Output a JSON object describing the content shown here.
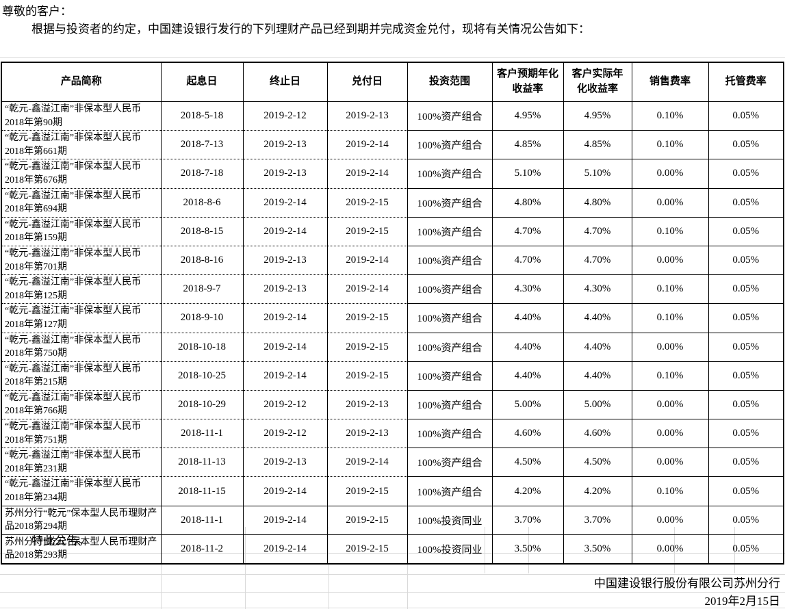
{
  "document": {
    "salutation": "尊敬的客户：",
    "intro": "根据与投资者的约定，中国建设银行发行的下列理财产品已经到期并完成资金兑付，现将有关情况公告如下：",
    "closing": "特此公告。",
    "issuer": "中国建设银行股份有限公司苏州分行",
    "date": "2019年2月15日"
  },
  "table": {
    "columns": [
      "产品简称",
      "起息日",
      "终止日",
      "兑付日",
      "投资范围",
      "客户预期年化收益率",
      "客户实际年化收益率",
      "销售费率",
      "托管费率"
    ],
    "rows": [
      [
        "“乾元-鑫溢江南”非保本型人民币2018年第90期",
        "2018-5-18",
        "2019-2-12",
        "2019-2-13",
        "100%资产组合",
        "4.95%",
        "4.95%",
        "0.10%",
        "0.05%"
      ],
      [
        "“乾元-鑫溢江南”非保本型人民币2018年第661期",
        "2018-7-13",
        "2019-2-13",
        "2019-2-14",
        "100%资产组合",
        "4.85%",
        "4.85%",
        "0.10%",
        "0.05%"
      ],
      [
        "“乾元-鑫溢江南”非保本型人民币2018年第676期",
        "2018-7-18",
        "2019-2-13",
        "2019-2-14",
        "100%资产组合",
        "5.10%",
        "5.10%",
        "0.00%",
        "0.05%"
      ],
      [
        "“乾元-鑫溢江南”非保本型人民币2018年第694期",
        "2018-8-6",
        "2019-2-14",
        "2019-2-15",
        "100%资产组合",
        "4.80%",
        "4.80%",
        "0.00%",
        "0.05%"
      ],
      [
        "“乾元-鑫溢江南”非保本型人民币2018年第159期",
        "2018-8-15",
        "2019-2-14",
        "2019-2-15",
        "100%资产组合",
        "4.70%",
        "4.70%",
        "0.10%",
        "0.05%"
      ],
      [
        "“乾元-鑫溢江南”非保本型人民币2018年第701期",
        "2018-8-16",
        "2019-2-13",
        "2019-2-14",
        "100%资产组合",
        "4.70%",
        "4.70%",
        "0.00%",
        "0.05%"
      ],
      [
        "“乾元-鑫溢江南”非保本型人民币2018年第125期",
        "2018-9-7",
        "2019-2-13",
        "2019-2-14",
        "100%资产组合",
        "4.30%",
        "4.30%",
        "0.10%",
        "0.05%"
      ],
      [
        "“乾元-鑫溢江南”非保本型人民币2018年第127期",
        "2018-9-10",
        "2019-2-14",
        "2019-2-15",
        "100%资产组合",
        "4.40%",
        "4.40%",
        "0.10%",
        "0.05%"
      ],
      [
        "“乾元-鑫溢江南”非保本型人民币2018年第750期",
        "2018-10-18",
        "2019-2-14",
        "2019-2-15",
        "100%资产组合",
        "4.40%",
        "4.40%",
        "0.00%",
        "0.05%"
      ],
      [
        "“乾元-鑫溢江南”非保本型人民币2018年第215期",
        "2018-10-25",
        "2019-2-14",
        "2019-2-15",
        "100%资产组合",
        "4.40%",
        "4.40%",
        "0.10%",
        "0.05%"
      ],
      [
        "“乾元-鑫溢江南”非保本型人民币2018年第766期",
        "2018-10-29",
        "2019-2-12",
        "2019-2-13",
        "100%资产组合",
        "5.00%",
        "5.00%",
        "0.00%",
        "0.05%"
      ],
      [
        "“乾元-鑫溢江南”非保本型人民币2018年第751期",
        "2018-11-1",
        "2019-2-12",
        "2019-2-13",
        "100%资产组合",
        "4.60%",
        "4.60%",
        "0.00%",
        "0.05%"
      ],
      [
        "“乾元-鑫溢江南”非保本型人民币2018年第231期",
        "2018-11-13",
        "2019-2-13",
        "2019-2-14",
        "100%资产组合",
        "4.50%",
        "4.50%",
        "0.00%",
        "0.05%"
      ],
      [
        "“乾元-鑫溢江南”非保本型人民币2018年第234期",
        "2018-11-15",
        "2019-2-14",
        "2019-2-15",
        "100%资产组合",
        "4.20%",
        "4.20%",
        "0.10%",
        "0.05%"
      ],
      [
        "苏州分行“乾元”保本型人民币理财产品2018第294期",
        "2018-11-1",
        "2019-2-14",
        "2019-2-15",
        "100%投资同业",
        "3.70%",
        "3.70%",
        "0.00%",
        "0.05%"
      ],
      [
        "苏州分行“乾元”保本型人民币理财产品2018第293期",
        "2018-11-2",
        "2019-2-14",
        "2019-2-15",
        "100%投资同业",
        "3.50%",
        "3.50%",
        "0.00%",
        "0.05%"
      ]
    ]
  },
  "colors": {
    "text": "#000000",
    "table_border": "#000000",
    "faint_gridline": "#d9d9d9",
    "background": "#ffffff"
  }
}
